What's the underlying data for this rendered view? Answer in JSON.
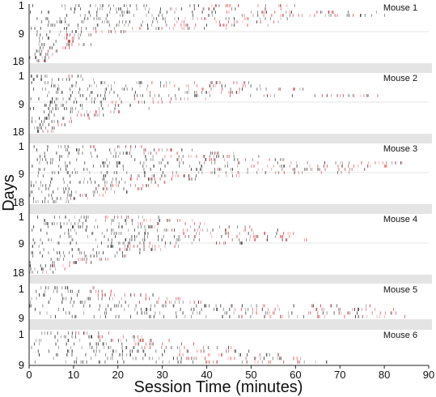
{
  "chart_data": {
    "type": "raster",
    "xlabel": "Session Time (minutes)",
    "ylabel": "Days",
    "xlim": [
      0,
      90
    ],
    "x_ticks": [
      "0",
      "10",
      "20",
      "30",
      "40",
      "50",
      "60",
      "70",
      "80",
      "90"
    ],
    "colors": {
      "tick_early": "#222222",
      "tick_late": "#e0303a",
      "separator": "#e4e4e4",
      "midline": "#dddddd"
    },
    "panels": [
      {
        "label": "Mouse 1",
        "days": 18,
        "y_tick_labels": [
          "1",
          "9",
          "18"
        ],
        "activity": [
          {
            "day": 1,
            "end_min": 61
          },
          {
            "day": 2,
            "end_min": 57
          },
          {
            "day": 3,
            "end_min": 79
          },
          {
            "day": 4,
            "end_min": 80
          },
          {
            "day": 5,
            "end_min": 61
          },
          {
            "day": 6,
            "end_min": 58
          },
          {
            "day": 7,
            "end_min": 58
          },
          {
            "day": 8,
            "end_min": 45
          },
          {
            "day": 9,
            "end_min": 23
          },
          {
            "day": 10,
            "end_min": 14
          },
          {
            "day": 11,
            "end_min": 12
          },
          {
            "day": 12,
            "end_min": 11
          },
          {
            "day": 13,
            "end_min": 15
          },
          {
            "day": 14,
            "end_min": 9
          },
          {
            "day": 15,
            "end_min": 7
          },
          {
            "day": 16,
            "end_min": 6
          },
          {
            "day": 17,
            "end_min": 5
          },
          {
            "day": 18,
            "end_min": 4
          }
        ]
      },
      {
        "label": "Mouse 2",
        "days": 18,
        "y_tick_labels": [
          "1",
          "9",
          "18"
        ],
        "activity": [
          {
            "day": 1,
            "end_min": 12
          },
          {
            "day": 2,
            "end_min": 18
          },
          {
            "day": 3,
            "end_min": 50
          },
          {
            "day": 4,
            "end_min": 55
          },
          {
            "day": 5,
            "end_min": 62
          },
          {
            "day": 6,
            "end_min": 48
          },
          {
            "day": 7,
            "end_min": 80
          },
          {
            "day": 8,
            "end_min": 40
          },
          {
            "day": 9,
            "end_min": 32
          },
          {
            "day": 10,
            "end_min": 24
          },
          {
            "day": 11,
            "end_min": 28
          },
          {
            "day": 12,
            "end_min": 22
          },
          {
            "day": 13,
            "end_min": 18
          },
          {
            "day": 14,
            "end_min": 14
          },
          {
            "day": 15,
            "end_min": 10
          },
          {
            "day": 16,
            "end_min": 8
          },
          {
            "day": 17,
            "end_min": 7
          },
          {
            "day": 18,
            "end_min": 6
          }
        ]
      },
      {
        "label": "Mouse 3",
        "days": 18,
        "y_tick_labels": [
          "1",
          "9",
          "18"
        ],
        "activity": [
          {
            "day": 1,
            "end_min": 26
          },
          {
            "day": 2,
            "end_min": 38
          },
          {
            "day": 3,
            "end_min": 46
          },
          {
            "day": 4,
            "end_min": 52
          },
          {
            "day": 5,
            "end_min": 58
          },
          {
            "day": 6,
            "end_min": 84
          },
          {
            "day": 7,
            "end_min": 82
          },
          {
            "day": 8,
            "end_min": 76
          },
          {
            "day": 9,
            "end_min": 72
          },
          {
            "day": 10,
            "end_min": 48
          },
          {
            "day": 11,
            "end_min": 38
          },
          {
            "day": 12,
            "end_min": 32
          },
          {
            "day": 13,
            "end_min": 30
          },
          {
            "day": 14,
            "end_min": 26
          },
          {
            "day": 15,
            "end_min": 22
          },
          {
            "day": 16,
            "end_min": 18
          },
          {
            "day": 17,
            "end_min": 15
          },
          {
            "day": 18,
            "end_min": 12
          }
        ]
      },
      {
        "label": "Mouse 4",
        "days": 18,
        "y_tick_labels": [
          "1",
          "9",
          "18"
        ],
        "activity": [
          {
            "day": 1,
            "end_min": 30
          },
          {
            "day": 2,
            "end_min": 38
          },
          {
            "day": 3,
            "end_min": 44
          },
          {
            "day": 4,
            "end_min": 50
          },
          {
            "day": 5,
            "end_min": 56
          },
          {
            "day": 6,
            "end_min": 60
          },
          {
            "day": 7,
            "end_min": 62
          },
          {
            "day": 8,
            "end_min": 64
          },
          {
            "day": 9,
            "end_min": 48
          },
          {
            "day": 10,
            "end_min": 36
          },
          {
            "day": 11,
            "end_min": 30
          },
          {
            "day": 12,
            "end_min": 26
          },
          {
            "day": 13,
            "end_min": 22
          },
          {
            "day": 14,
            "end_min": 18
          },
          {
            "day": 15,
            "end_min": 14
          },
          {
            "day": 16,
            "end_min": 10
          },
          {
            "day": 17,
            "end_min": 8
          },
          {
            "day": 18,
            "end_min": 6
          }
        ]
      },
      {
        "label": "Mouse 5",
        "days": 9,
        "y_tick_labels": [
          "1",
          "9"
        ],
        "activity": [
          {
            "day": 1,
            "end_min": 16
          },
          {
            "day": 2,
            "end_min": 22
          },
          {
            "day": 3,
            "end_min": 28
          },
          {
            "day": 4,
            "end_min": 34
          },
          {
            "day": 5,
            "end_min": 40
          },
          {
            "day": 6,
            "end_min": 78
          },
          {
            "day": 7,
            "end_min": 82
          },
          {
            "day": 8,
            "end_min": 84
          },
          {
            "day": 9,
            "end_min": 86
          }
        ]
      },
      {
        "label": "Mouse 6",
        "days": 9,
        "y_tick_labels": [
          "1",
          "9"
        ],
        "activity": [
          {
            "day": 1,
            "end_min": 18
          },
          {
            "day": 2,
            "end_min": 26
          },
          {
            "day": 3,
            "end_min": 34
          },
          {
            "day": 4,
            "end_min": 40
          },
          {
            "day": 5,
            "end_min": 46
          },
          {
            "day": 6,
            "end_min": 52
          },
          {
            "day": 7,
            "end_min": 58
          },
          {
            "day": 8,
            "end_min": 64
          },
          {
            "day": 9,
            "end_min": 68
          }
        ]
      }
    ]
  }
}
